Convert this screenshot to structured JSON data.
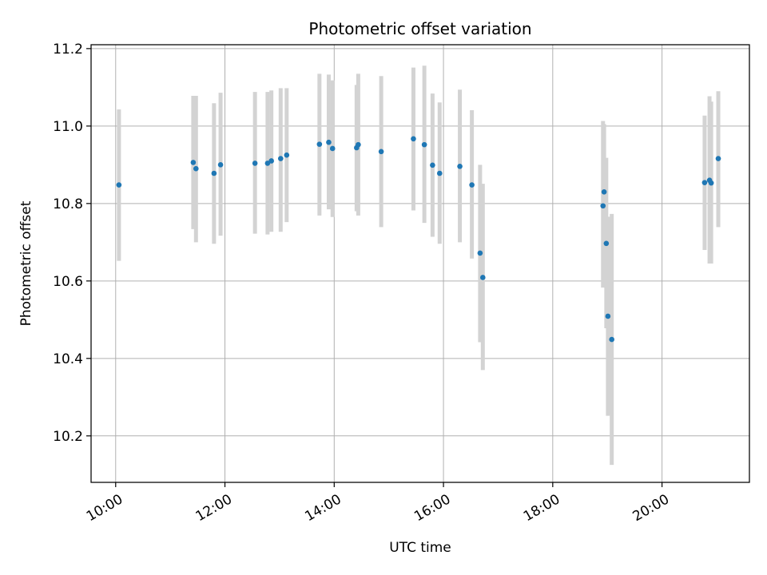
{
  "chart_data": {
    "type": "scatter",
    "title": "Photometric offset variation",
    "xlabel": "UTC time",
    "ylabel": "Photometric offset",
    "x_unit": "hour of day (UTC)",
    "xlim": [
      9.55,
      21.6
    ],
    "ylim": [
      10.08,
      11.21
    ],
    "x_ticks": [
      {
        "value": 10,
        "label": "10:00"
      },
      {
        "value": 12,
        "label": "12:00"
      },
      {
        "value": 14,
        "label": "14:00"
      },
      {
        "value": 16,
        "label": "16:00"
      },
      {
        "value": 18,
        "label": "18:00"
      },
      {
        "value": 20,
        "label": "20:00"
      }
    ],
    "y_ticks": [
      {
        "value": 10.2,
        "label": "10.2"
      },
      {
        "value": 10.4,
        "label": "10.4"
      },
      {
        "value": 10.6,
        "label": "10.6"
      },
      {
        "value": 10.8,
        "label": "10.8"
      },
      {
        "value": 11.0,
        "label": "11.0"
      },
      {
        "value": 11.2,
        "label": "11.2"
      }
    ],
    "grid": true,
    "point_color": "#1f77b4",
    "errorbar_color": "#d3d3d3",
    "points": [
      {
        "x": 10.06,
        "y": 10.848,
        "ylow": 10.652,
        "yhigh": 11.043
      },
      {
        "x": 11.42,
        "y": 10.906,
        "ylow": 10.734,
        "yhigh": 11.078
      },
      {
        "x": 11.47,
        "y": 10.89,
        "ylow": 10.7,
        "yhigh": 11.078
      },
      {
        "x": 11.8,
        "y": 10.878,
        "ylow": 10.696,
        "yhigh": 11.059
      },
      {
        "x": 11.92,
        "y": 10.9,
        "ylow": 10.717,
        "yhigh": 11.086
      },
      {
        "x": 12.55,
        "y": 10.904,
        "ylow": 10.722,
        "yhigh": 11.088
      },
      {
        "x": 12.78,
        "y": 10.904,
        "ylow": 10.72,
        "yhigh": 11.088
      },
      {
        "x": 12.85,
        "y": 10.91,
        "ylow": 10.727,
        "yhigh": 11.092
      },
      {
        "x": 13.02,
        "y": 10.916,
        "ylow": 10.727,
        "yhigh": 11.098
      },
      {
        "x": 13.13,
        "y": 10.925,
        "ylow": 10.752,
        "yhigh": 11.098
      },
      {
        "x": 13.73,
        "y": 10.953,
        "ylow": 10.769,
        "yhigh": 11.135
      },
      {
        "x": 13.9,
        "y": 10.958,
        "ylow": 10.785,
        "yhigh": 11.133
      },
      {
        "x": 13.97,
        "y": 10.942,
        "ylow": 10.765,
        "yhigh": 11.118
      },
      {
        "x": 14.41,
        "y": 10.944,
        "ylow": 10.78,
        "yhigh": 11.106
      },
      {
        "x": 14.44,
        "y": 10.952,
        "ylow": 10.769,
        "yhigh": 11.135
      },
      {
        "x": 14.86,
        "y": 10.934,
        "ylow": 10.739,
        "yhigh": 11.129
      },
      {
        "x": 15.45,
        "y": 10.967,
        "ylow": 10.782,
        "yhigh": 11.151
      },
      {
        "x": 15.65,
        "y": 10.952,
        "ylow": 10.75,
        "yhigh": 11.156
      },
      {
        "x": 15.8,
        "y": 10.899,
        "ylow": 10.714,
        "yhigh": 11.084
      },
      {
        "x": 15.93,
        "y": 10.878,
        "ylow": 10.696,
        "yhigh": 11.061
      },
      {
        "x": 16.3,
        "y": 10.896,
        "ylow": 10.7,
        "yhigh": 11.094
      },
      {
        "x": 16.52,
        "y": 10.848,
        "ylow": 10.658,
        "yhigh": 11.041
      },
      {
        "x": 16.67,
        "y": 10.672,
        "ylow": 10.442,
        "yhigh": 10.9
      },
      {
        "x": 16.72,
        "y": 10.609,
        "ylow": 10.37,
        "yhigh": 10.851
      },
      {
        "x": 18.92,
        "y": 10.794,
        "ylow": 10.583,
        "yhigh": 11.013
      },
      {
        "x": 18.94,
        "y": 10.83,
        "ylow": 10.585,
        "yhigh": 11.005
      },
      {
        "x": 18.98,
        "y": 10.697,
        "ylow": 10.478,
        "yhigh": 10.918
      },
      {
        "x": 19.01,
        "y": 10.509,
        "ylow": 10.252,
        "yhigh": 10.766
      },
      {
        "x": 19.08,
        "y": 10.449,
        "ylow": 10.125,
        "yhigh": 10.773
      },
      {
        "x": 20.78,
        "y": 10.854,
        "ylow": 10.68,
        "yhigh": 11.027
      },
      {
        "x": 20.87,
        "y": 10.86,
        "ylow": 10.645,
        "yhigh": 11.077
      },
      {
        "x": 20.9,
        "y": 10.853,
        "ylow": 10.645,
        "yhigh": 11.063
      },
      {
        "x": 21.03,
        "y": 10.916,
        "ylow": 10.739,
        "yhigh": 11.09
      }
    ]
  }
}
